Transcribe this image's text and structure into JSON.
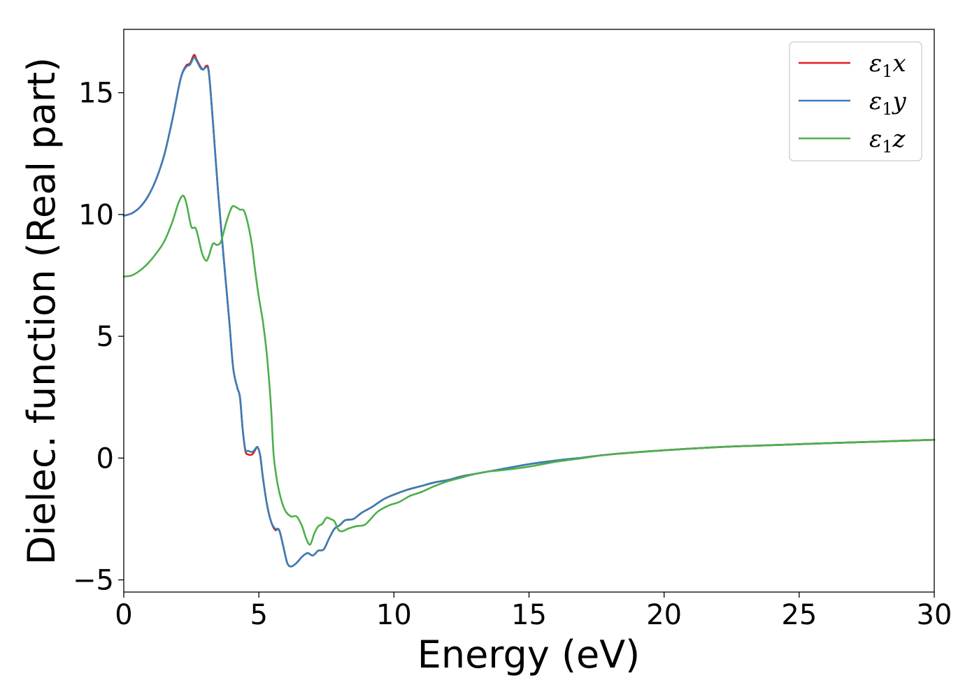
{
  "chart_data": {
    "type": "line",
    "xlabel": "Energy (eV)",
    "ylabel": "Dielec. function (Real part)",
    "xlim": [
      0,
      30
    ],
    "ylim": [
      -5.5,
      17.6
    ],
    "xticks": [
      0,
      5,
      10,
      15,
      20,
      25,
      30
    ],
    "yticks": [
      -5,
      0,
      5,
      10,
      15
    ],
    "xtick_labels": [
      "0",
      "5",
      "10",
      "15",
      "20",
      "25",
      "30"
    ],
    "ytick_labels": [
      "−5",
      "0",
      "5",
      "10",
      "15"
    ],
    "grid": false,
    "legend_position": "top-right",
    "series": [
      {
        "name": "x",
        "legend": {
          "base": "ε",
          "sub": "1",
          "var": "x"
        },
        "color": "#e41a1c",
        "points": [
          [
            0,
            9.95
          ],
          [
            0.3,
            10.05
          ],
          [
            0.6,
            10.3
          ],
          [
            0.9,
            10.75
          ],
          [
            1.2,
            11.45
          ],
          [
            1.5,
            12.45
          ],
          [
            1.8,
            13.9
          ],
          [
            2.1,
            15.55
          ],
          [
            2.3,
            16.1
          ],
          [
            2.45,
            16.2
          ],
          [
            2.6,
            16.55
          ],
          [
            2.7,
            16.35
          ],
          [
            2.85,
            16.05
          ],
          [
            2.95,
            15.95
          ],
          [
            3.05,
            16.1
          ],
          [
            3.15,
            15.85
          ],
          [
            3.3,
            13.8
          ],
          [
            3.5,
            10.8
          ],
          [
            3.7,
            8.2
          ],
          [
            3.9,
            5.7
          ],
          [
            4.05,
            3.7
          ],
          [
            4.2,
            2.9
          ],
          [
            4.3,
            2.5
          ],
          [
            4.4,
            1.2
          ],
          [
            4.5,
            0.3
          ],
          [
            4.6,
            0.15
          ],
          [
            4.75,
            0.15
          ],
          [
            4.85,
            0.3
          ],
          [
            4.95,
            0.45
          ],
          [
            5.05,
            0.1
          ],
          [
            5.15,
            -0.8
          ],
          [
            5.3,
            -1.9
          ],
          [
            5.45,
            -2.6
          ],
          [
            5.6,
            -2.95
          ],
          [
            5.75,
            -2.95
          ],
          [
            5.9,
            -3.6
          ],
          [
            6.05,
            -4.3
          ],
          [
            6.2,
            -4.45
          ],
          [
            6.4,
            -4.3
          ],
          [
            6.6,
            -4.05
          ],
          [
            6.8,
            -3.9
          ],
          [
            7.0,
            -4.0
          ],
          [
            7.2,
            -3.8
          ],
          [
            7.4,
            -3.75
          ],
          [
            7.6,
            -3.3
          ],
          [
            7.8,
            -2.9
          ],
          [
            8.0,
            -2.75
          ],
          [
            8.2,
            -2.55
          ],
          [
            8.5,
            -2.5
          ],
          [
            8.8,
            -2.25
          ],
          [
            9.2,
            -2.0
          ],
          [
            9.6,
            -1.7
          ],
          [
            10.0,
            -1.5
          ],
          [
            10.5,
            -1.3
          ],
          [
            11.0,
            -1.15
          ],
          [
            11.5,
            -1.0
          ],
          [
            12.0,
            -0.9
          ],
          [
            12.5,
            -0.75
          ],
          [
            13.0,
            -0.65
          ],
          [
            13.5,
            -0.55
          ],
          [
            14.0,
            -0.45
          ],
          [
            15.0,
            -0.25
          ],
          [
            16.0,
            -0.1
          ],
          [
            17.0,
            0.02
          ],
          [
            18.0,
            0.15
          ],
          [
            20.0,
            0.32
          ],
          [
            22.0,
            0.45
          ],
          [
            24.0,
            0.53
          ],
          [
            26.0,
            0.61
          ],
          [
            28.0,
            0.68
          ],
          [
            30.0,
            0.75
          ]
        ]
      },
      {
        "name": "y",
        "legend": {
          "base": "ε",
          "sub": "1",
          "var": "y"
        },
        "color": "#377eb8",
        "points": [
          [
            0,
            9.95
          ],
          [
            0.3,
            10.05
          ],
          [
            0.6,
            10.3
          ],
          [
            0.9,
            10.75
          ],
          [
            1.2,
            11.45
          ],
          [
            1.5,
            12.45
          ],
          [
            1.8,
            13.9
          ],
          [
            2.1,
            15.55
          ],
          [
            2.3,
            16.05
          ],
          [
            2.45,
            16.15
          ],
          [
            2.6,
            16.45
          ],
          [
            2.7,
            16.3
          ],
          [
            2.85,
            16.0
          ],
          [
            2.95,
            15.95
          ],
          [
            3.05,
            16.05
          ],
          [
            3.15,
            15.8
          ],
          [
            3.3,
            13.8
          ],
          [
            3.5,
            10.8
          ],
          [
            3.7,
            8.2
          ],
          [
            3.9,
            5.7
          ],
          [
            4.05,
            3.7
          ],
          [
            4.2,
            2.9
          ],
          [
            4.3,
            2.5
          ],
          [
            4.4,
            1.2
          ],
          [
            4.5,
            0.35
          ],
          [
            4.6,
            0.3
          ],
          [
            4.75,
            0.25
          ],
          [
            4.85,
            0.35
          ],
          [
            4.95,
            0.45
          ],
          [
            5.05,
            0.1
          ],
          [
            5.15,
            -0.8
          ],
          [
            5.3,
            -1.9
          ],
          [
            5.45,
            -2.6
          ],
          [
            5.6,
            -2.9
          ],
          [
            5.75,
            -2.95
          ],
          [
            5.9,
            -3.6
          ],
          [
            6.05,
            -4.3
          ],
          [
            6.2,
            -4.45
          ],
          [
            6.4,
            -4.3
          ],
          [
            6.6,
            -4.05
          ],
          [
            6.8,
            -3.9
          ],
          [
            7.0,
            -4.0
          ],
          [
            7.2,
            -3.8
          ],
          [
            7.4,
            -3.75
          ],
          [
            7.6,
            -3.3
          ],
          [
            7.8,
            -2.9
          ],
          [
            8.0,
            -2.75
          ],
          [
            8.2,
            -2.55
          ],
          [
            8.5,
            -2.5
          ],
          [
            8.8,
            -2.25
          ],
          [
            9.2,
            -2.0
          ],
          [
            9.6,
            -1.7
          ],
          [
            10.0,
            -1.5
          ],
          [
            10.5,
            -1.3
          ],
          [
            11.0,
            -1.15
          ],
          [
            11.5,
            -1.0
          ],
          [
            12.0,
            -0.9
          ],
          [
            12.5,
            -0.75
          ],
          [
            13.0,
            -0.65
          ],
          [
            13.5,
            -0.55
          ],
          [
            14.0,
            -0.45
          ],
          [
            15.0,
            -0.25
          ],
          [
            16.0,
            -0.1
          ],
          [
            17.0,
            0.02
          ],
          [
            18.0,
            0.15
          ],
          [
            20.0,
            0.32
          ],
          [
            22.0,
            0.45
          ],
          [
            24.0,
            0.53
          ],
          [
            26.0,
            0.61
          ],
          [
            28.0,
            0.68
          ],
          [
            30.0,
            0.75
          ]
        ]
      },
      {
        "name": "z",
        "legend": {
          "base": "ε",
          "sub": "1",
          "var": "z"
        },
        "color": "#4daf4a",
        "points": [
          [
            0,
            7.45
          ],
          [
            0.3,
            7.5
          ],
          [
            0.6,
            7.7
          ],
          [
            0.9,
            8.0
          ],
          [
            1.2,
            8.4
          ],
          [
            1.5,
            8.9
          ],
          [
            1.8,
            9.7
          ],
          [
            2.0,
            10.4
          ],
          [
            2.15,
            10.75
          ],
          [
            2.25,
            10.7
          ],
          [
            2.35,
            10.3
          ],
          [
            2.5,
            9.5
          ],
          [
            2.65,
            9.45
          ],
          [
            2.75,
            9.1
          ],
          [
            2.9,
            8.4
          ],
          [
            3.05,
            8.1
          ],
          [
            3.15,
            8.3
          ],
          [
            3.3,
            8.8
          ],
          [
            3.45,
            8.75
          ],
          [
            3.6,
            8.9
          ],
          [
            3.8,
            9.7
          ],
          [
            4.0,
            10.3
          ],
          [
            4.15,
            10.3
          ],
          [
            4.3,
            10.2
          ],
          [
            4.45,
            10.15
          ],
          [
            4.6,
            9.6
          ],
          [
            4.75,
            8.7
          ],
          [
            4.85,
            7.8
          ],
          [
            5.0,
            6.6
          ],
          [
            5.15,
            5.6
          ],
          [
            5.3,
            4.2
          ],
          [
            5.45,
            2.1
          ],
          [
            5.55,
            0.1
          ],
          [
            5.7,
            -1.1
          ],
          [
            5.85,
            -1.8
          ],
          [
            6.0,
            -2.2
          ],
          [
            6.2,
            -2.4
          ],
          [
            6.4,
            -2.4
          ],
          [
            6.6,
            -2.8
          ],
          [
            6.75,
            -3.3
          ],
          [
            6.9,
            -3.55
          ],
          [
            7.05,
            -3.1
          ],
          [
            7.2,
            -2.8
          ],
          [
            7.35,
            -2.7
          ],
          [
            7.5,
            -2.45
          ],
          [
            7.65,
            -2.5
          ],
          [
            7.8,
            -2.6
          ],
          [
            7.95,
            -2.95
          ],
          [
            8.1,
            -3.0
          ],
          [
            8.3,
            -2.9
          ],
          [
            8.6,
            -2.8
          ],
          [
            8.9,
            -2.75
          ],
          [
            9.1,
            -2.55
          ],
          [
            9.4,
            -2.2
          ],
          [
            9.8,
            -1.95
          ],
          [
            10.2,
            -1.8
          ],
          [
            10.6,
            -1.55
          ],
          [
            11.0,
            -1.4
          ],
          [
            11.5,
            -1.15
          ],
          [
            12.0,
            -0.95
          ],
          [
            12.5,
            -0.8
          ],
          [
            13.0,
            -0.65
          ],
          [
            13.5,
            -0.55
          ],
          [
            14.0,
            -0.5
          ],
          [
            15.0,
            -0.35
          ],
          [
            16.0,
            -0.15
          ],
          [
            17.0,
            0.0
          ],
          [
            18.0,
            0.15
          ],
          [
            20.0,
            0.32
          ],
          [
            22.0,
            0.45
          ],
          [
            24.0,
            0.53
          ],
          [
            26.0,
            0.61
          ],
          [
            28.0,
            0.68
          ],
          [
            30.0,
            0.75
          ]
        ]
      }
    ]
  }
}
